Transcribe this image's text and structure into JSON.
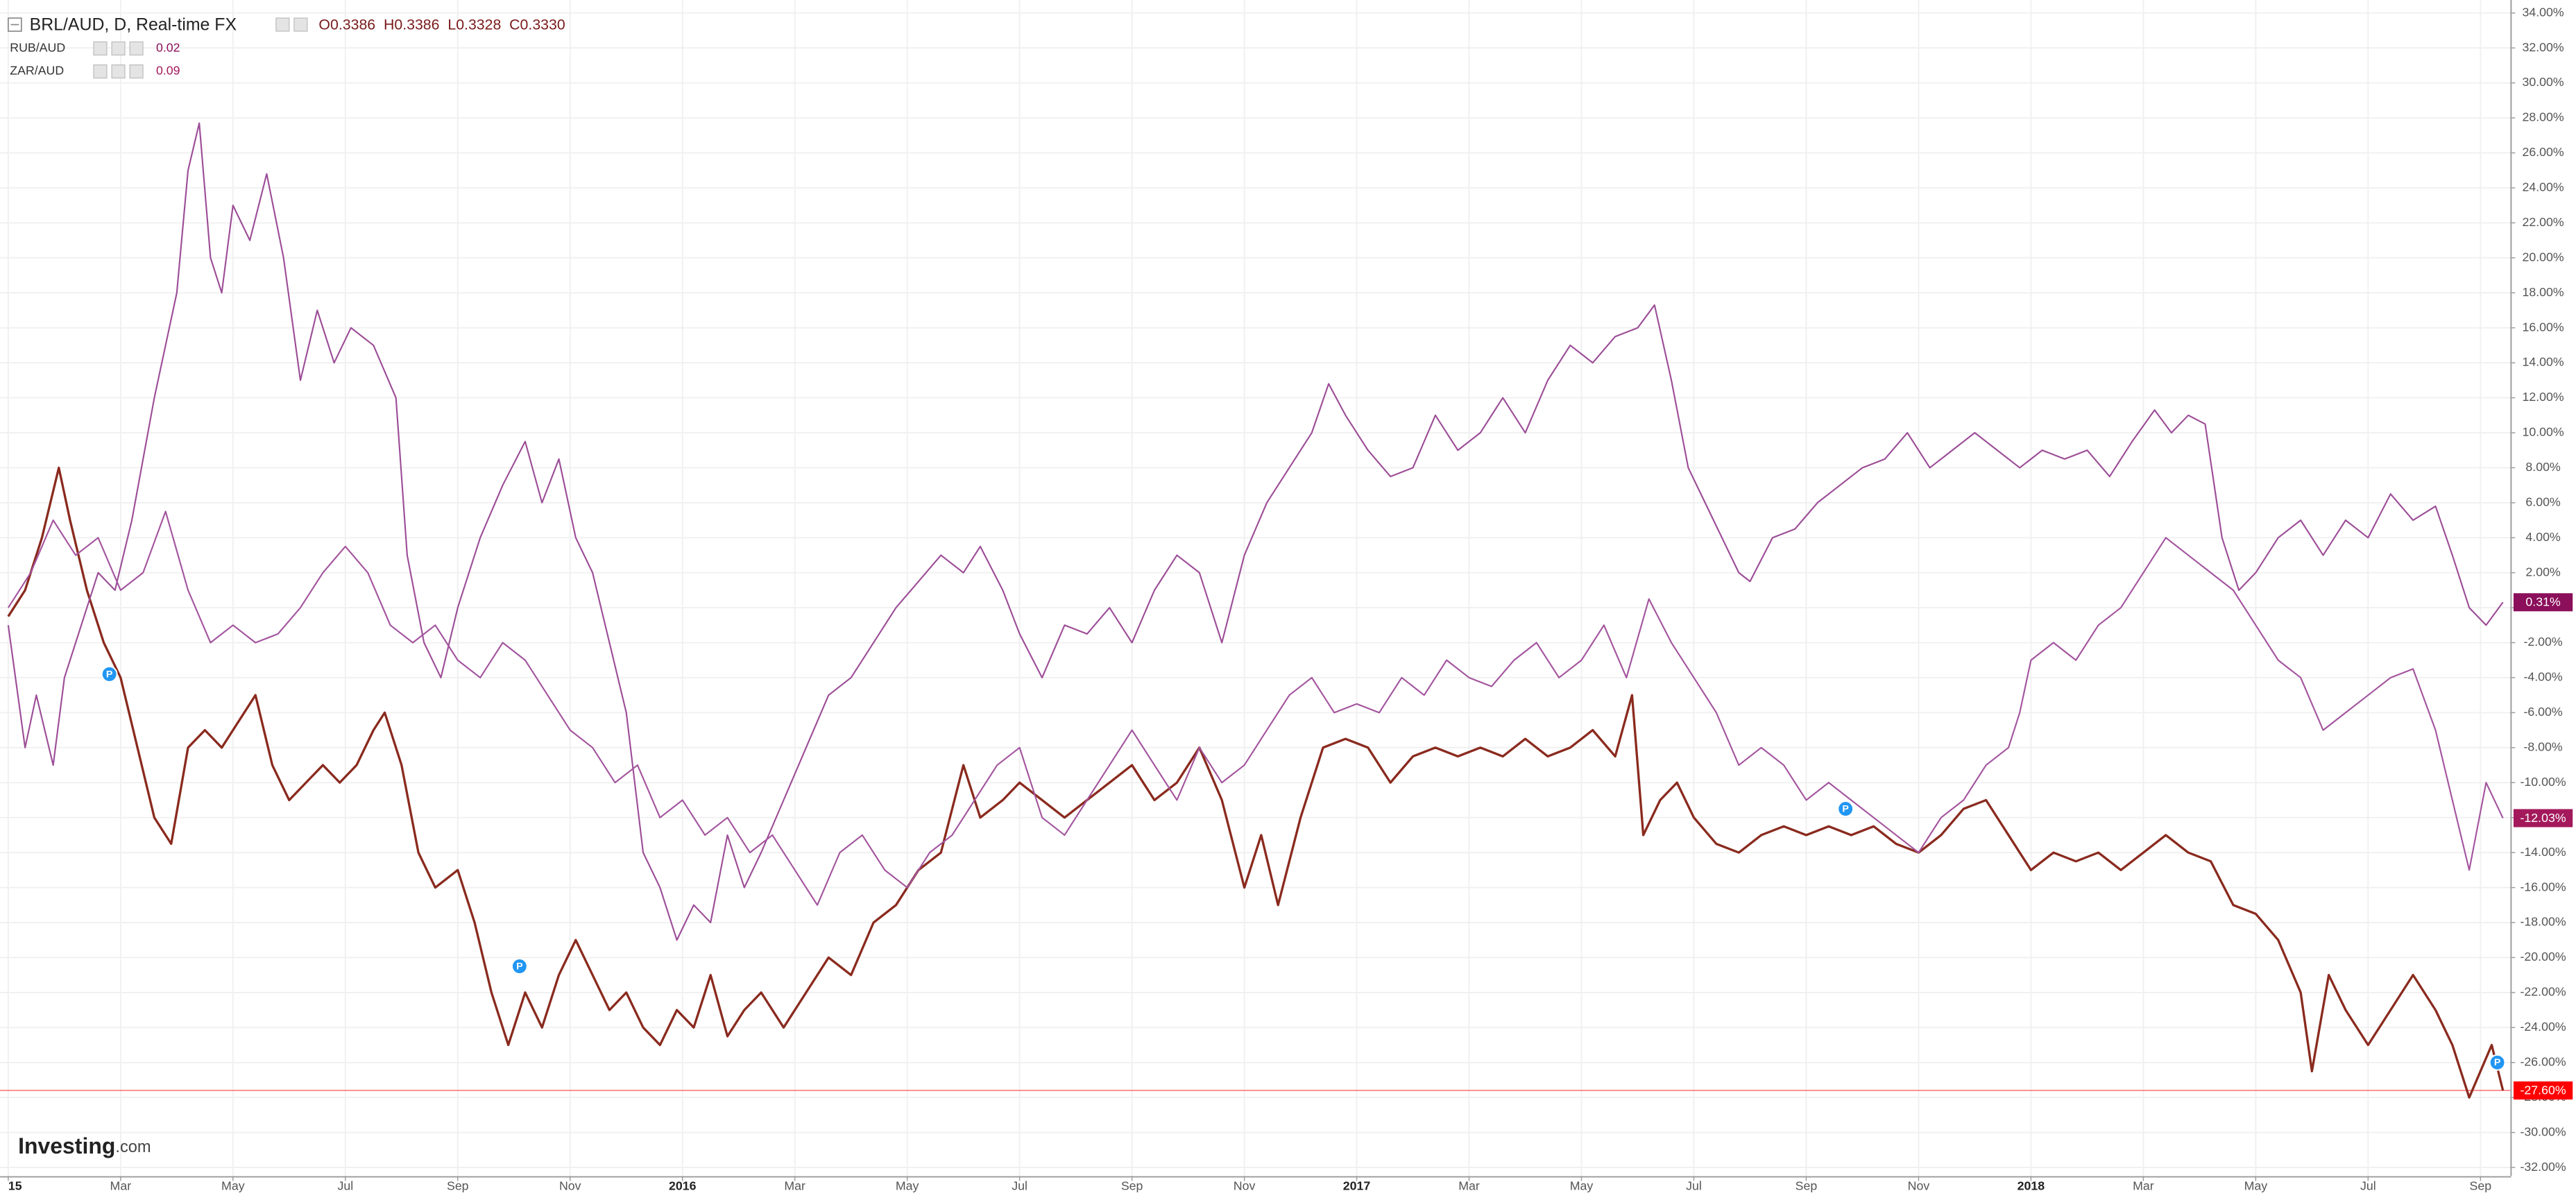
{
  "chart_data": {
    "type": "line",
    "subtitle": ", D, Real-time FX",
    "ohlc": [
      "O0.3386",
      "H0.3386",
      "L0.3328",
      "C0.3330"
    ],
    "brand": [
      "Investing",
      ".com"
    ],
    "xlim": [
      -0.146,
      44.53
    ],
    "xticks": [
      {
        "value": 0,
        "label": "15"
      },
      {
        "value": 2,
        "label": "Mar"
      },
      {
        "value": 4,
        "label": "May"
      },
      {
        "value": 6,
        "label": "Jul"
      },
      {
        "value": 8,
        "label": "Sep"
      },
      {
        "value": 10,
        "label": "Nov"
      },
      {
        "value": 12,
        "label": "2016"
      },
      {
        "value": 14,
        "label": "Mar"
      },
      {
        "value": 16,
        "label": "May"
      },
      {
        "value": 18,
        "label": "Jul"
      },
      {
        "value": 20,
        "label": "Sep"
      },
      {
        "value": 22,
        "label": "Nov"
      },
      {
        "value": 24,
        "label": "2017"
      },
      {
        "value": 26,
        "label": "Mar"
      },
      {
        "value": 28,
        "label": "May"
      },
      {
        "value": 30,
        "label": "Jul"
      },
      {
        "value": 32,
        "label": "Sep"
      },
      {
        "value": 34,
        "label": "Nov"
      },
      {
        "value": 36,
        "label": "2018"
      },
      {
        "value": 38,
        "label": "Mar"
      },
      {
        "value": 40,
        "label": "May"
      },
      {
        "value": 42,
        "label": "Jul"
      },
      {
        "value": 44,
        "label": "Sep"
      }
    ],
    "ylim": [
      -32.49,
      34.74
    ],
    "yticks": [
      {
        "value": 34,
        "label": "34.00%"
      },
      {
        "value": 32,
        "label": "32.00%"
      },
      {
        "value": 30,
        "label": "30.00%"
      },
      {
        "value": 28,
        "label": "28.00%"
      },
      {
        "value": 26,
        "label": "26.00%"
      },
      {
        "value": 24,
        "label": "24.00%"
      },
      {
        "value": 22,
        "label": "22.00%"
      },
      {
        "value": 20,
        "label": "20.00%"
      },
      {
        "value": 18,
        "label": "18.00%"
      },
      {
        "value": 16,
        "label": "16.00%"
      },
      {
        "value": 14,
        "label": "14.00%"
      },
      {
        "value": 12,
        "label": "12.00%"
      },
      {
        "value": 10,
        "label": "10.00%"
      },
      {
        "value": 8,
        "label": "8.00%"
      },
      {
        "value": 6,
        "label": "6.00%"
      },
      {
        "value": 4,
        "label": "4.00%"
      },
      {
        "value": 2,
        "label": "2.00%"
      },
      {
        "value": 0,
        "label": "0.00%"
      },
      {
        "value": -2,
        "label": "-2.00%"
      },
      {
        "value": -4,
        "label": "-4.00%"
      },
      {
        "value": -6,
        "label": "-6.00%"
      },
      {
        "value": -8,
        "label": "-8.00%"
      },
      {
        "value": -10,
        "label": "-10.00%"
      },
      {
        "value": -12,
        "label": "-12.00%"
      },
      {
        "value": -14,
        "label": "-14.00%"
      },
      {
        "value": -16,
        "label": "-16.00%"
      },
      {
        "value": -18,
        "label": "-18.00%"
      },
      {
        "value": -20,
        "label": "-20.00%"
      },
      {
        "value": -22,
        "label": "-22.00%"
      },
      {
        "value": -24,
        "label": "-24.00%"
      },
      {
        "value": -26,
        "label": "-26.00%"
      },
      {
        "value": -28,
        "label": "-28.00%"
      },
      {
        "value": -30,
        "label": "-30.00%"
      },
      {
        "value": -32,
        "label": "-32.00%"
      }
    ],
    "grid": true,
    "series": [
      {
        "name": "BRL/AUD",
        "color": "#8a2a1e",
        "label_color": "#ff0000",
        "price_line": true,
        "last_label": "-27.60%",
        "x": [
          0,
          0.3,
          0.6,
          0.9,
          1.1,
          1.4,
          1.7,
          2,
          2.3,
          2.6,
          2.9,
          3.2,
          3.5,
          3.8,
          4.1,
          4.4,
          4.7,
          5,
          5.3,
          5.6,
          5.9,
          6.2,
          6.5,
          6.7,
          7,
          7.3,
          7.6,
          8,
          8.3,
          8.6,
          8.9,
          9.2,
          9.5,
          9.8,
          10.1,
          10.4,
          10.7,
          11,
          11.3,
          11.6,
          11.9,
          12.2,
          12.5,
          12.8,
          13.1,
          13.4,
          13.8,
          14.2,
          14.6,
          15,
          15.4,
          15.8,
          16.2,
          16.6,
          17,
          17.3,
          17.7,
          18,
          18.4,
          18.8,
          19.2,
          19.6,
          20,
          20.4,
          20.8,
          21.2,
          21.6,
          22,
          22.3,
          22.6,
          23,
          23.4,
          23.8,
          24.2,
          24.6,
          25,
          25.4,
          25.8,
          26.2,
          26.6,
          27,
          27.4,
          27.8,
          28.2,
          28.6,
          28.9,
          29.1,
          29.4,
          29.7,
          30,
          30.4,
          30.8,
          31.2,
          31.6,
          32,
          32.4,
          32.8,
          33.2,
          33.6,
          34,
          34.4,
          34.8,
          35.2,
          35.6,
          36,
          36.4,
          36.8,
          37.2,
          37.6,
          38,
          38.4,
          38.8,
          39.2,
          39.6,
          40,
          40.4,
          40.8,
          41,
          41.3,
          41.6,
          42,
          42.4,
          42.8,
          43.2,
          43.5,
          43.8,
          44,
          44.2,
          44.4
        ],
        "values": [
          -0.5,
          1,
          4,
          8,
          5,
          1,
          -2,
          -4,
          -8,
          -12,
          -13.5,
          -8,
          -7,
          -8,
          -6.5,
          -5,
          -9,
          -11,
          -10,
          -9,
          -10,
          -9,
          -7,
          -6,
          -9,
          -14,
          -16,
          -15,
          -18,
          -22,
          -25,
          -22,
          -24,
          -21,
          -19,
          -21,
          -23,
          -22,
          -24,
          -25,
          -23,
          -24,
          -21,
          -24.5,
          -23,
          -22,
          -24,
          -22,
          -20,
          -21,
          -18,
          -17,
          -15,
          -14,
          -9,
          -12,
          -11,
          -10,
          -11,
          -12,
          -11,
          -10,
          -9,
          -11,
          -10,
          -8,
          -11,
          -16,
          -13,
          -17,
          -12,
          -8,
          -7.5,
          -8,
          -10,
          -8.5,
          -8,
          -8.5,
          -8,
          -8.5,
          -7.5,
          -8.5,
          -8,
          -7,
          -8.5,
          -5,
          -13,
          -11,
          -10,
          -12,
          -13.5,
          -14,
          -13,
          -12.5,
          -13,
          -12.5,
          -13,
          -12.5,
          -13.5,
          -14,
          -13,
          -11.5,
          -11,
          -13,
          -15,
          -14,
          -14.5,
          -14,
          -15,
          -14,
          -13,
          -14,
          -14.5,
          -17,
          -17.5,
          -19,
          -22,
          -26.5,
          -21,
          -23,
          -25,
          -23,
          -21,
          -23,
          -25,
          -28,
          -26.5,
          -25,
          -27.6
        ]
      },
      {
        "name": "RUB/AUD",
        "color": "#9c4d97",
        "label_color": "#8b0f5a",
        "legend_value": 0.02,
        "last_label": "0.31%",
        "x": [
          0,
          0.3,
          0.5,
          0.8,
          1,
          1.3,
          1.6,
          1.9,
          2.2,
          2.6,
          3,
          3.2,
          3.4,
          3.6,
          3.8,
          4,
          4.3,
          4.6,
          4.9,
          5.2,
          5.5,
          5.8,
          6.1,
          6.5,
          6.9,
          7.1,
          7.4,
          7.7,
          8,
          8.4,
          8.8,
          9.2,
          9.5,
          9.8,
          10.1,
          10.4,
          10.7,
          11,
          11.3,
          11.6,
          11.9,
          12.2,
          12.5,
          12.8,
          13.1,
          13.4,
          13.8,
          14.2,
          14.6,
          15,
          15.4,
          15.8,
          16.2,
          16.6,
          17,
          17.3,
          17.7,
          18,
          18.4,
          18.8,
          19.2,
          19.6,
          20,
          20.4,
          20.8,
          21.2,
          21.6,
          22,
          22.4,
          22.8,
          23.2,
          23.5,
          23.8,
          24.2,
          24.6,
          25,
          25.4,
          25.8,
          26.2,
          26.6,
          27,
          27.4,
          27.8,
          28.2,
          28.6,
          29,
          29.3,
          29.6,
          29.9,
          30.2,
          30.5,
          30.8,
          31,
          31.4,
          31.8,
          32.2,
          32.6,
          33,
          33.4,
          33.8,
          34.2,
          34.6,
          35,
          35.4,
          35.8,
          36.2,
          36.6,
          37,
          37.4,
          37.8,
          38.2,
          38.5,
          38.8,
          39.1,
          39.4,
          39.7,
          40,
          40.4,
          40.8,
          41.2,
          41.6,
          42,
          42.4,
          42.8,
          43.2,
          43.5,
          43.8,
          44.1,
          44.4
        ],
        "values": [
          -1,
          -8,
          -5,
          -9,
          -4,
          -1,
          2,
          1,
          5,
          12,
          18,
          25,
          27.7,
          20,
          18,
          23,
          21,
          24.8,
          20,
          13,
          17,
          14,
          16,
          15,
          12,
          3,
          -2,
          -4,
          0,
          4,
          7,
          9.5,
          6,
          8.5,
          4,
          2,
          -2,
          -6,
          -14,
          -16,
          -19,
          -17,
          -18,
          -13,
          -16,
          -14,
          -11,
          -8,
          -5,
          -4,
          -2,
          0,
          1.5,
          3,
          2,
          3.5,
          1,
          -1.5,
          -4,
          -1,
          -1.5,
          0,
          -2,
          1,
          3,
          2,
          -2,
          3,
          6,
          8,
          10,
          12.8,
          11,
          9,
          7.5,
          8,
          11,
          9,
          10,
          12,
          10,
          13,
          15,
          14,
          15.5,
          16,
          17.3,
          13,
          8,
          6,
          4,
          2,
          1.5,
          4,
          4.5,
          6,
          7,
          8,
          8.5,
          10,
          8,
          9,
          10,
          9,
          8,
          9,
          8.5,
          9,
          7.5,
          9.5,
          11.3,
          10,
          11,
          10.5,
          4,
          1,
          2,
          4,
          5,
          3,
          5,
          4,
          6.5,
          5,
          5.8,
          3,
          0,
          -1,
          0.31
        ]
      },
      {
        "name": "ZAR/AUD",
        "color": "#a3549e",
        "label_color": "#a3195b",
        "legend_value": 0.09,
        "last_label": "-12.03%",
        "x": [
          0,
          0.4,
          0.8,
          1.2,
          1.6,
          2,
          2.4,
          2.8,
          3.2,
          3.6,
          4,
          4.4,
          4.8,
          5.2,
          5.6,
          6,
          6.4,
          6.8,
          7.2,
          7.6,
          8,
          8.4,
          8.8,
          9.2,
          9.6,
          10,
          10.4,
          10.8,
          11.2,
          11.6,
          12,
          12.4,
          12.8,
          13.2,
          13.6,
          14,
          14.4,
          14.8,
          15.2,
          15.6,
          16,
          16.4,
          16.8,
          17.2,
          17.6,
          18,
          18.4,
          18.8,
          19.2,
          19.6,
          20,
          20.4,
          20.8,
          21.2,
          21.6,
          22,
          22.4,
          22.8,
          23.2,
          23.6,
          24,
          24.4,
          24.8,
          25.2,
          25.6,
          26,
          26.4,
          26.8,
          27.2,
          27.6,
          28,
          28.4,
          28.8,
          29.2,
          29.6,
          30,
          30.4,
          30.8,
          31.2,
          31.6,
          32,
          32.4,
          32.8,
          33.2,
          33.6,
          34,
          34.4,
          34.8,
          35.2,
          35.6,
          35.8,
          36,
          36.4,
          36.8,
          37.2,
          37.6,
          38,
          38.4,
          38.8,
          39.2,
          39.6,
          40,
          40.4,
          40.8,
          41.2,
          41.6,
          42,
          42.4,
          42.8,
          43.2,
          43.5,
          43.8,
          44.1,
          44.4
        ],
        "values": [
          0,
          2,
          5,
          3,
          4,
          1,
          2,
          5.5,
          1,
          -2,
          -1,
          -2,
          -1.5,
          0,
          2,
          3.5,
          2,
          -1,
          -2,
          -1,
          -3,
          -4,
          -2,
          -3,
          -5,
          -7,
          -8,
          -10,
          -9,
          -12,
          -11,
          -13,
          -12,
          -14,
          -13,
          -15,
          -17,
          -14,
          -13,
          -15,
          -16,
          -14,
          -13,
          -11,
          -9,
          -8,
          -12,
          -13,
          -11,
          -9,
          -7,
          -9,
          -11,
          -8,
          -10,
          -9,
          -7,
          -5,
          -4,
          -6,
          -5.5,
          -6,
          -4,
          -5,
          -3,
          -4,
          -4.5,
          -3,
          -2,
          -4,
          -3,
          -1,
          -4,
          0.5,
          -2,
          -4,
          -6,
          -9,
          -8,
          -9,
          -11,
          -10,
          -11,
          -12,
          -13,
          -14,
          -12,
          -11,
          -9,
          -8,
          -6,
          -3,
          -2,
          -3,
          -1,
          0,
          2,
          4,
          3,
          2,
          1,
          -1,
          -3,
          -4,
          -7,
          -6,
          -5,
          -4,
          -3.5,
          -7,
          -11,
          -15,
          -10,
          -12.03
        ]
      }
    ],
    "events": [
      {
        "x": 1.8,
        "y": -3.8,
        "label": "P"
      },
      {
        "x": 9.1,
        "y": -20.5,
        "label": "P"
      },
      {
        "x": 32.7,
        "y": -11.5,
        "label": "P"
      },
      {
        "x": 44.3,
        "y": -26,
        "label": "P"
      }
    ]
  }
}
